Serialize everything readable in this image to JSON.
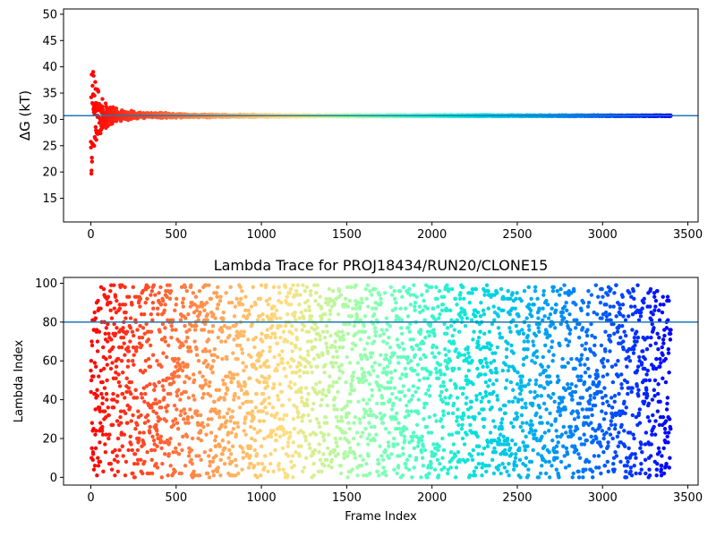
{
  "chart_data": [
    {
      "type": "scatter",
      "title": "",
      "xlabel": "",
      "ylabel": "ΔG (kT)",
      "xlim": [
        -160,
        3560
      ],
      "ylim": [
        10.5,
        51
      ],
      "xticks": [
        0,
        500,
        1000,
        1500,
        2000,
        2500,
        3000,
        3500
      ],
      "xtick_labels": [
        "0",
        "500",
        "1000",
        "1500",
        "2000",
        "2500",
        "3000",
        "3500"
      ],
      "yticks": [
        15,
        20,
        25,
        30,
        35,
        40,
        45,
        50
      ],
      "ytick_labels": [
        "15",
        "20",
        "25",
        "30",
        "35",
        "40",
        "45",
        "50"
      ],
      "grid": false,
      "colormap": "rainbow (red at frame 0 → violet at frame 3400)",
      "hline": {
        "y": 30.7,
        "color": "#1f77b4"
      },
      "series": [
        {
          "envelope": [
            {
              "x": 0,
              "low": 17,
              "high": 40
            },
            {
              "x": 10,
              "low": 24,
              "high": 40
            },
            {
              "x": 25,
              "low": 25,
              "high": 37.5
            },
            {
              "x": 50,
              "low": 26,
              "high": 35
            },
            {
              "x": 100,
              "low": 28,
              "high": 33
            },
            {
              "x": 150,
              "low": 29,
              "high": 32.5
            },
            {
              "x": 200,
              "low": 29.5,
              "high": 32
            },
            {
              "x": 300,
              "low": 30,
              "high": 31.6
            },
            {
              "x": 500,
              "low": 30.2,
              "high": 31.2
            },
            {
              "x": 800,
              "low": 30.35,
              "high": 31.0
            },
            {
              "x": 1200,
              "low": 30.45,
              "high": 30.9
            },
            {
              "x": 2000,
              "low": 30.55,
              "high": 30.85
            },
            {
              "x": 3400,
              "low": 30.6,
              "high": 30.8
            }
          ],
          "x_range": [
            0,
            3400
          ],
          "converged_value": 30.7
        }
      ]
    },
    {
      "type": "scatter",
      "title": "Lambda Trace for PROJ18434/RUN20/CLONE15",
      "xlabel": "Frame Index",
      "ylabel": "Lambda Index",
      "xlim": [
        -160,
        3560
      ],
      "ylim": [
        -4,
        103
      ],
      "xticks": [
        0,
        500,
        1000,
        1500,
        2000,
        2500,
        3000,
        3500
      ],
      "xtick_labels": [
        "0",
        "500",
        "1000",
        "1500",
        "2000",
        "2500",
        "3000",
        "3500"
      ],
      "yticks": [
        0,
        20,
        40,
        60,
        80,
        100
      ],
      "ytick_labels": [
        "0",
        "20",
        "40",
        "60",
        "80",
        "100"
      ],
      "grid": false,
      "colormap": "rainbow (red at frame 0 → violet at frame 3400)",
      "hline": {
        "y": 80,
        "color": "#1f77b4"
      },
      "series": [
        {
          "x_range": [
            0,
            3400
          ],
          "y_range": [
            0,
            99
          ],
          "frame_step": 1,
          "distribution": "frames spread uniformly over lambda index 0–99"
        }
      ]
    }
  ]
}
